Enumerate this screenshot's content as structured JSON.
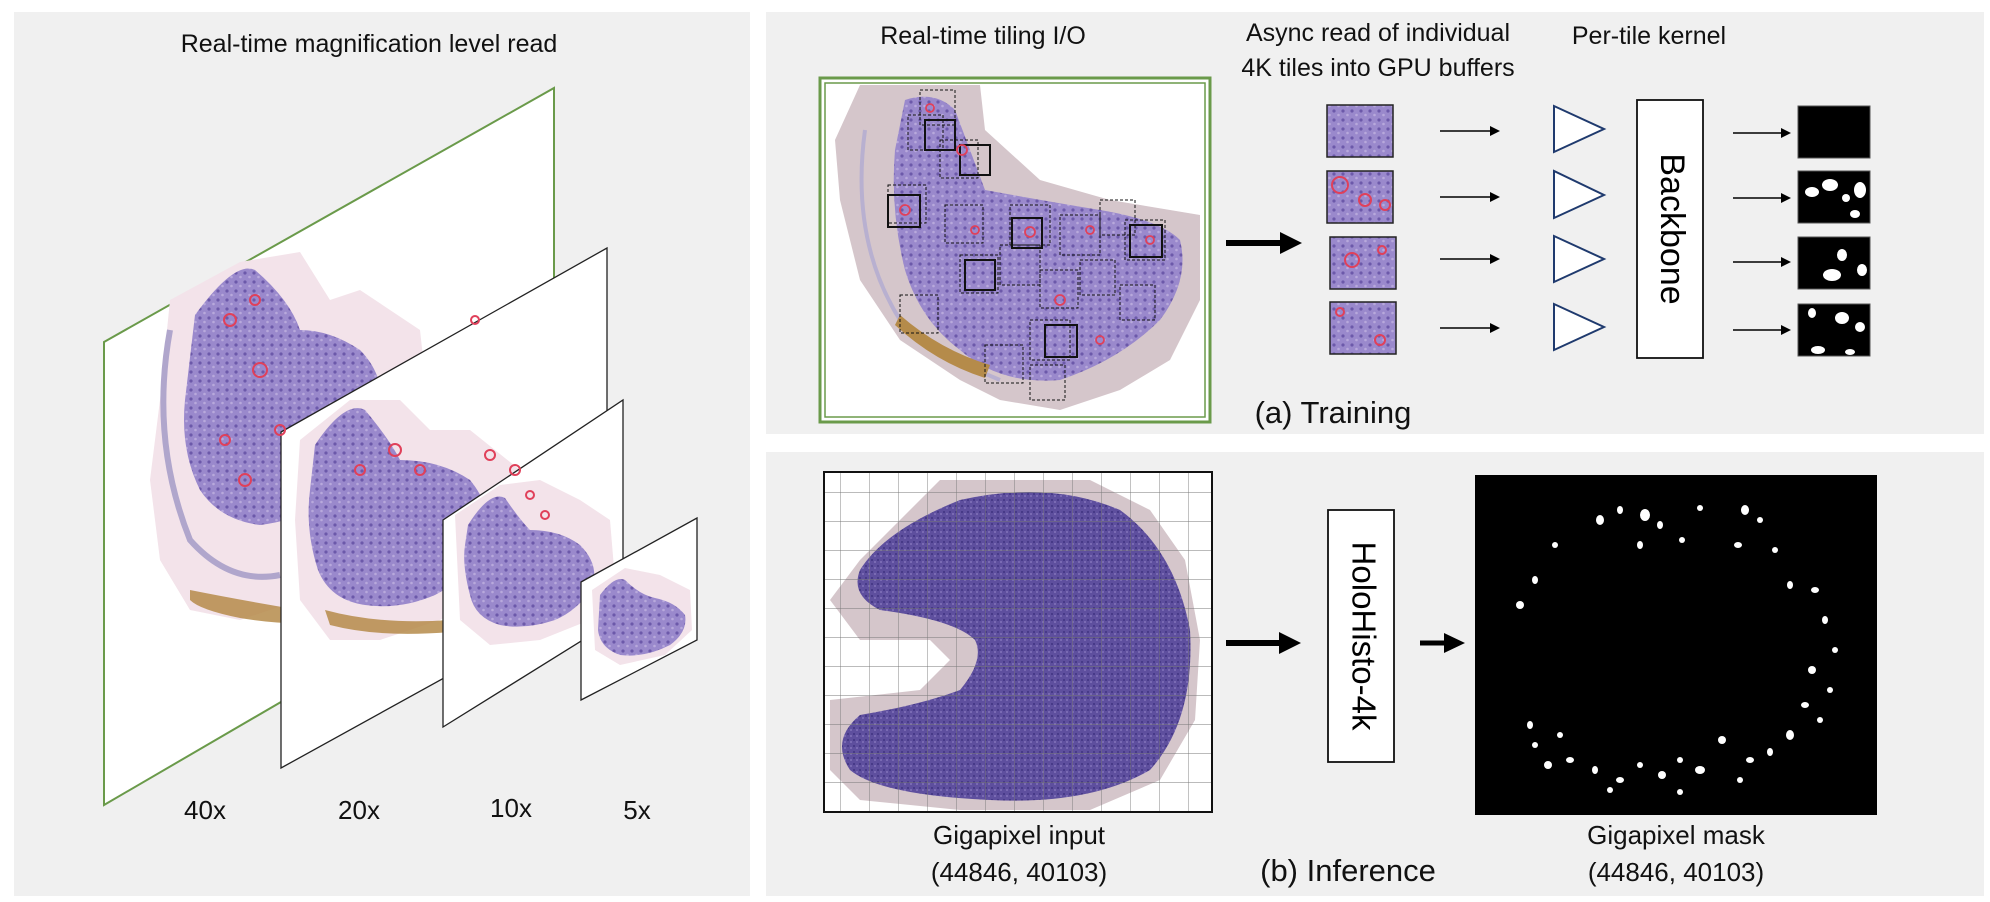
{
  "left_panel": {
    "title": "Real-time magnification level read",
    "levels": [
      "40x",
      "20x",
      "10x",
      "5x"
    ]
  },
  "training": {
    "tiling_title": "Real-time tiling I/O",
    "async_title_line1": "Async read of individual",
    "async_title_line2": "4K tiles into GPU buffers",
    "kernel_title": "Per-tile kernel",
    "backbone_label": "Backbone",
    "caption": "(a) Training"
  },
  "inference": {
    "input_label": "Gigapixel input",
    "input_dims": "(44846, 40103)",
    "model_label": "HoloHisto-4k",
    "mask_label": "Gigapixel mask",
    "mask_dims": "(44846, 40103)",
    "caption": "(b) Inference"
  },
  "colors": {
    "tissue": "#8e7cc3",
    "tissue_dark": "#5b4a9a",
    "halo": "#e9dde6",
    "tile_grid": "#d9c8cf",
    "frame_green": "#6a9a4a",
    "nuclei_red": "#e0405a",
    "kernel_blue": "#1f3a6e"
  }
}
